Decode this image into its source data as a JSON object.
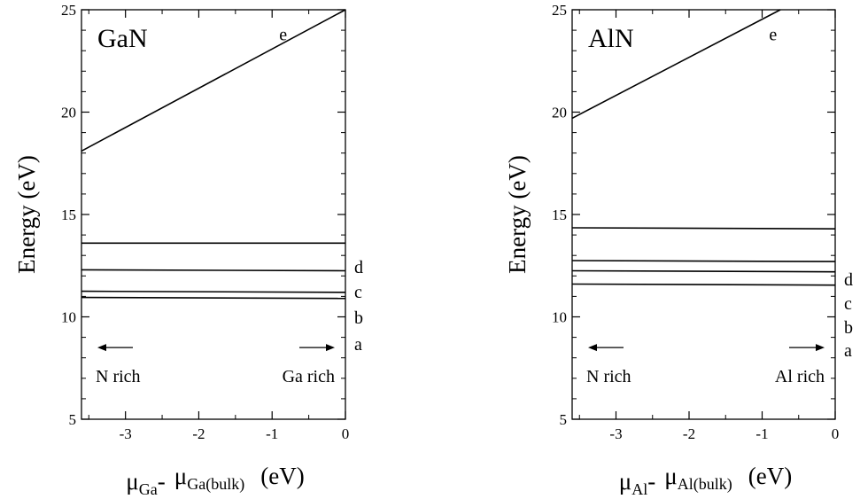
{
  "chart_data": [
    {
      "type": "line",
      "title": "GaN",
      "ylabel": "Energy (eV)",
      "xlabel": {
        "mu": "μ",
        "sub1": "Ga",
        "dash": "-",
        "sub2": "Ga(bulk)",
        "unit": "(eV)"
      },
      "xlim": [
        -3.6,
        0
      ],
      "ylim": [
        5,
        25
      ],
      "xticks": [
        -3,
        -2,
        -1,
        0
      ],
      "yticks": [
        5,
        10,
        15,
        20,
        25
      ],
      "series": [
        {
          "name": "a",
          "x": [
            -3.6,
            0
          ],
          "y": [
            10.95,
            10.9
          ]
        },
        {
          "name": "b",
          "x": [
            -3.6,
            0
          ],
          "y": [
            11.25,
            11.2
          ]
        },
        {
          "name": "c",
          "x": [
            -3.6,
            0
          ],
          "y": [
            12.3,
            12.25
          ]
        },
        {
          "name": "d",
          "x": [
            -3.6,
            0
          ],
          "y": [
            13.6,
            13.6
          ]
        },
        {
          "name": "e",
          "x": [
            -3.6,
            0
          ],
          "y": [
            18.1,
            25.0
          ]
        }
      ],
      "annotations": {
        "left": "N rich",
        "right": "Ga rich"
      },
      "grid": false
    },
    {
      "type": "line",
      "title": "AlN",
      "ylabel": "Energy (eV)",
      "xlabel": {
        "mu": "μ",
        "sub1": "Al",
        "dash": "-",
        "sub2": "Al(bulk)",
        "unit": "(eV)"
      },
      "xlim": [
        -3.6,
        0
      ],
      "ylim": [
        5,
        25
      ],
      "xticks": [
        -3,
        -2,
        -1,
        0
      ],
      "yticks": [
        5,
        10,
        15,
        20,
        25
      ],
      "series": [
        {
          "name": "a",
          "x": [
            -3.6,
            0
          ],
          "y": [
            11.6,
            11.55
          ]
        },
        {
          "name": "b",
          "x": [
            -3.6,
            0
          ],
          "y": [
            12.25,
            12.2
          ]
        },
        {
          "name": "c",
          "x": [
            -3.6,
            0
          ],
          "y": [
            12.75,
            12.7
          ]
        },
        {
          "name": "d",
          "x": [
            -3.6,
            0
          ],
          "y": [
            14.35,
            14.3
          ]
        },
        {
          "name": "e",
          "x": [
            -3.6,
            -0.75
          ],
          "y": [
            19.7,
            25.0
          ]
        }
      ],
      "annotations": {
        "left": "N rich",
        "right": "Al rich"
      },
      "grid": false
    }
  ]
}
